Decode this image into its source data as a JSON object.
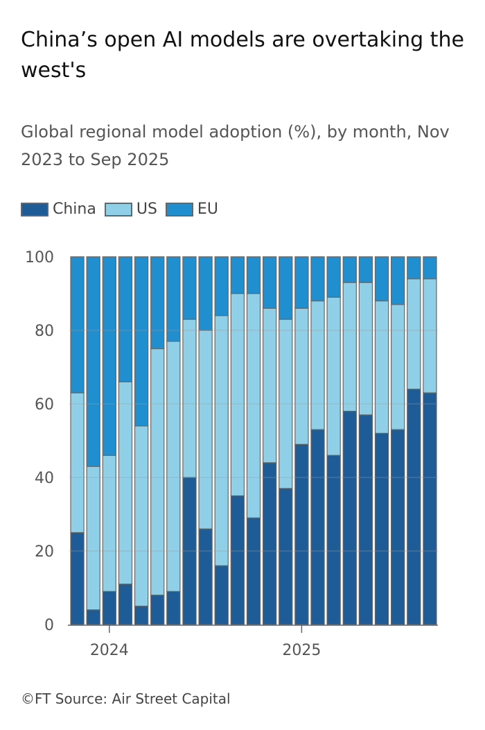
{
  "title": "China’s open AI models are overtaking the west's",
  "subtitle": "Global regional model adoption (%), by month, Nov 2023 to Sep 2025",
  "source": "©FT Source: Air Street Capital",
  "chart_data": {
    "type": "bar",
    "stacked": true,
    "categories": [
      "Nov 2023",
      "Dec 2023",
      "Jan 2024",
      "Feb 2024",
      "Mar 2024",
      "Apr 2024",
      "May 2024",
      "Jun 2024",
      "Jul 2024",
      "Aug 2024",
      "Sep 2024",
      "Oct 2024",
      "Nov 2024",
      "Dec 2024",
      "Jan 2025",
      "Feb 2025",
      "Mar 2025",
      "Apr 2025",
      "May 2025",
      "Jun 2025",
      "Jul 2025",
      "Aug 2025",
      "Sep 2025"
    ],
    "series": [
      {
        "name": "China",
        "color": "#1e5c97",
        "values": [
          25,
          4,
          9,
          11,
          5,
          8,
          9,
          40,
          26,
          16,
          35,
          29,
          44,
          37,
          49,
          53,
          46,
          58,
          57,
          52,
          53,
          64,
          63
        ]
      },
      {
        "name": "US",
        "color": "#8fd0e8",
        "values": [
          38,
          39,
          37,
          55,
          49,
          67,
          68,
          43,
          54,
          68,
          55,
          61,
          42,
          46,
          37,
          35,
          43,
          35,
          36,
          36,
          34,
          30,
          31
        ]
      },
      {
        "name": "EU",
        "color": "#1f8fd0",
        "values": [
          37,
          57,
          54,
          34,
          46,
          25,
          23,
          17,
          20,
          16,
          10,
          10,
          14,
          17,
          14,
          12,
          11,
          7,
          7,
          12,
          13,
          6,
          6
        ]
      }
    ],
    "ylim": [
      0,
      100
    ],
    "yticks": [
      0,
      20,
      40,
      60,
      80,
      100
    ],
    "xtick_labels": [
      {
        "label": "2024",
        "category": "Jan 2024"
      },
      {
        "label": "2025",
        "category": "Jan 2025"
      }
    ],
    "grid": true,
    "legend": "top-left",
    "xlabel": "",
    "ylabel": ""
  }
}
